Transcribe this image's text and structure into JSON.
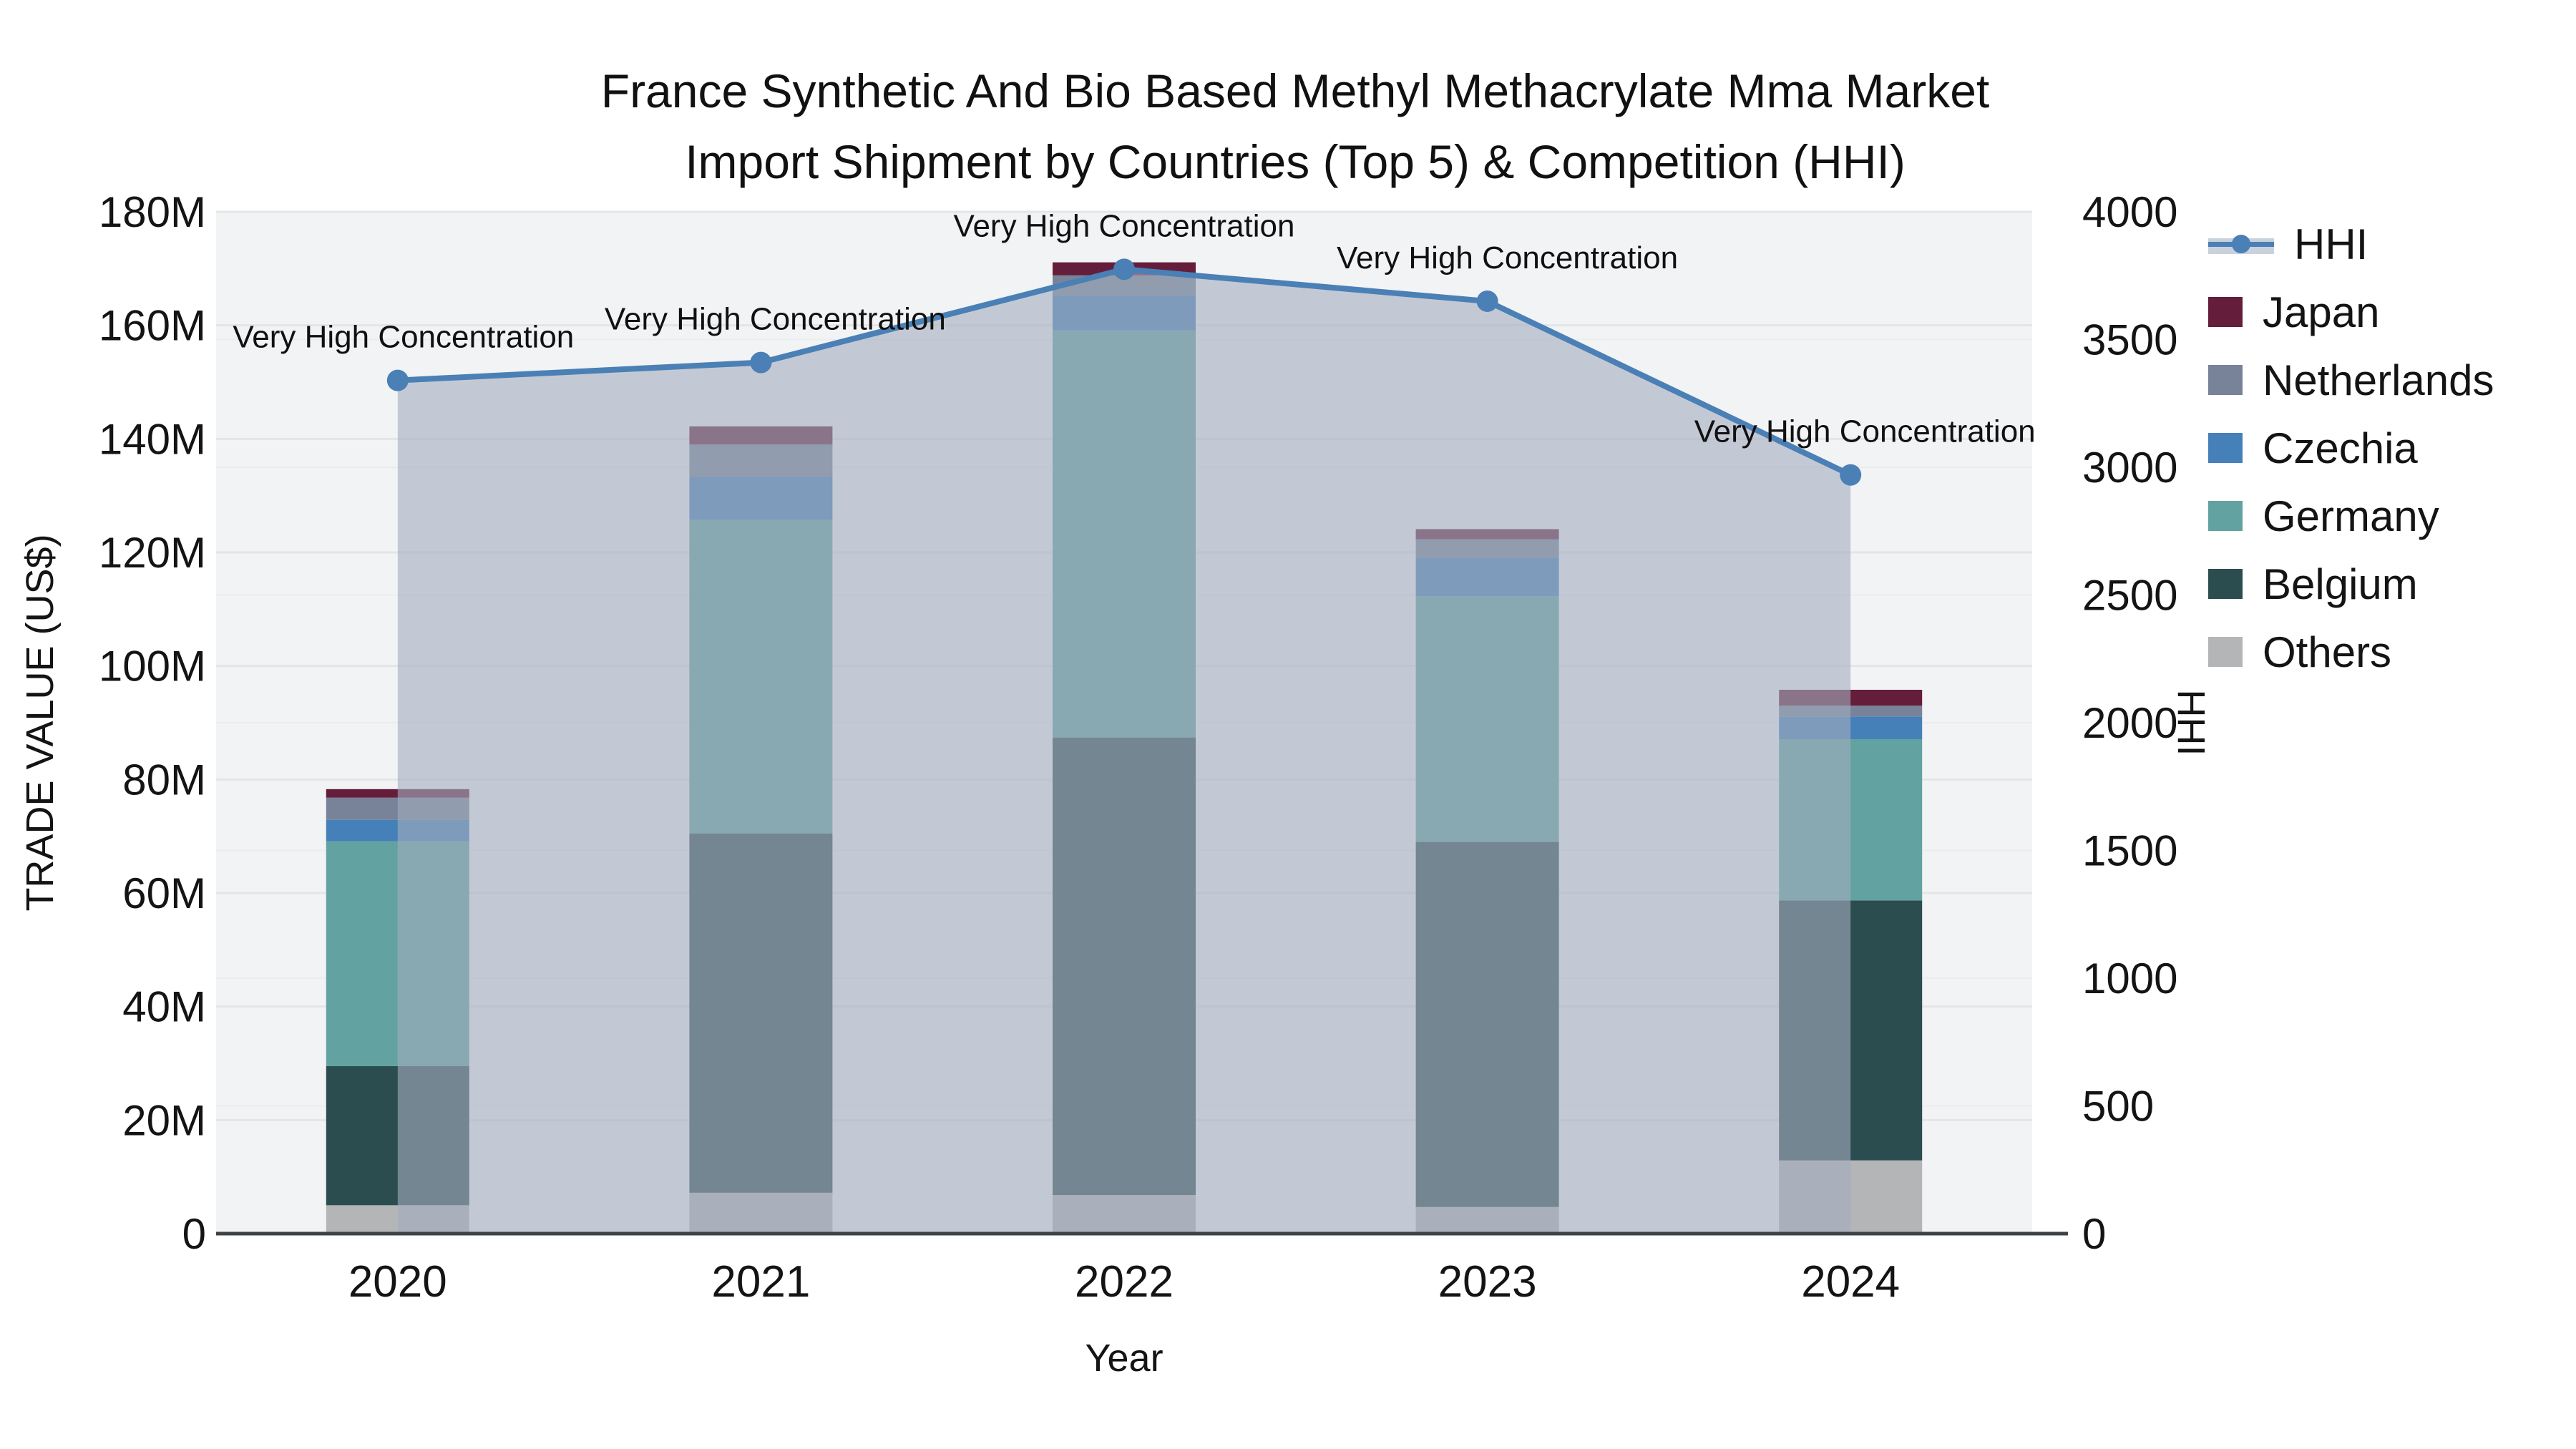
{
  "title": {
    "line1": "France Synthetic And Bio Based Methyl Methacrylate Mma Market",
    "line2": "Import Shipment by Countries (Top 5) & Competition (HHI)"
  },
  "axes": {
    "y_left_title": "TRADE VALUE (US$)",
    "y_right_title": "HHI",
    "x_title": "Year"
  },
  "legend": {
    "items": [
      "HHI",
      "Japan",
      "Netherlands",
      "Czechia",
      "Germany",
      "Belgium",
      "Others"
    ]
  },
  "colors": {
    "japan": "#641e3c",
    "netherlands": "#78839a",
    "czechia": "#4680b9",
    "germany": "#62a3a1",
    "belgium": "#2c4d4f",
    "others": "#b4b5b6",
    "hhi_line": "#4a80b5",
    "area_fill": "rgba(163,173,190,0.6)",
    "plot_bg": "#f2f3f4",
    "grid_major": "#e3e5e7",
    "grid_minor": "#eaecee",
    "axis_line": "#3f4245",
    "text": "#141414"
  },
  "chart_data": {
    "type": "bar+line",
    "title": "France Synthetic And Bio Based Methyl Methacrylate Mma Market Import Shipment by Countries (Top 5) & Competition (HHI)",
    "xlabel": "Year",
    "ylabel_left": "TRADE VALUE (US$)",
    "ylabel_right": "HHI",
    "categories": [
      "2020",
      "2021",
      "2022",
      "2023",
      "2024"
    ],
    "y_left_max_millions": 180,
    "y_right_max": 4000,
    "y_left_ticks": [
      "0",
      "20M",
      "40M",
      "60M",
      "80M",
      "100M",
      "120M",
      "140M",
      "160M",
      "180M"
    ],
    "y_right_ticks": [
      "0",
      "500",
      "1000",
      "1500",
      "2000",
      "2500",
      "3000",
      "3500",
      "4000"
    ],
    "stack_order_bottom_to_top": [
      "Others",
      "Belgium",
      "Germany",
      "Czechia",
      "Netherlands",
      "Japan"
    ],
    "series": [
      {
        "name": "Japan",
        "color_key": "japan",
        "values_millions": [
          1.5,
          3.2,
          2.3,
          1.8,
          2.8
        ]
      },
      {
        "name": "Netherlands",
        "color_key": "netherlands",
        "values_millions": [
          3.9,
          5.7,
          3.5,
          3.3,
          1.9
        ]
      },
      {
        "name": "Czechia",
        "color_key": "czechia",
        "values_millions": [
          3.8,
          7.6,
          6.2,
          6.7,
          4.0
        ]
      },
      {
        "name": "Germany",
        "color_key": "germany",
        "values_millions": [
          39.6,
          55.2,
          71.7,
          43.3,
          28.4
        ]
      },
      {
        "name": "Belgium",
        "color_key": "belgium",
        "values_millions": [
          24.5,
          63.3,
          80.6,
          64.3,
          45.8
        ]
      },
      {
        "name": "Others",
        "color_key": "others",
        "values_millions": [
          5.0,
          7.2,
          6.8,
          4.7,
          12.9
        ]
      }
    ],
    "bar_totals_millions": [
      78.3,
      142.2,
      171.1,
      124.1,
      95.8
    ],
    "hhi_series": {
      "name": "HHI",
      "values": [
        3340,
        3410,
        3775,
        3650,
        2970
      ]
    },
    "annotations": [
      {
        "text": "Very High Concentration",
        "category": "2020"
      },
      {
        "text": "Very High Concentration",
        "category": "2021"
      },
      {
        "text": "Very High Concentration",
        "category": "2022"
      },
      {
        "text": "Very High Concentration",
        "category": "2023"
      },
      {
        "text": "Very High Concentration",
        "category": "2024"
      }
    ],
    "legend_position": "right",
    "grid": true
  }
}
